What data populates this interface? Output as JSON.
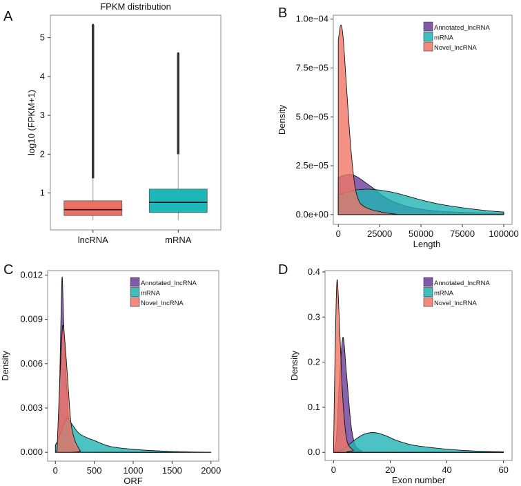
{
  "colors": {
    "Annotated_lncRNA": "#6a3d9a",
    "mRNA": "#1fb3b3",
    "Novel_lncRNA": "#f07567",
    "box_lncRNA": "#ee6f64",
    "box_mRNA": "#1eb8bb"
  },
  "chart_data": [
    {
      "panel": "A",
      "type": "box",
      "title": "FPKM distribution",
      "xlabel": "",
      "ylabel": "log10 (FPKM+1)",
      "categories": [
        "lncRNA",
        "mRNA"
      ],
      "ylim": [
        0.05,
        5.58
      ],
      "yticks": [
        1,
        2,
        3,
        4,
        5
      ],
      "grid": false,
      "boxes": [
        {
          "name": "lncRNA",
          "min": 0.3,
          "q1": 0.42,
          "median": 0.57,
          "q3": 0.8,
          "max": 1.38,
          "outliers_from": 1.38,
          "outliers_to": 5.33
        },
        {
          "name": "mRNA",
          "min": 0.3,
          "q1": 0.5,
          "median": 0.76,
          "q3": 1.1,
          "max": 2.0,
          "outliers_from": 2.0,
          "outliers_to": 4.6
        }
      ]
    },
    {
      "panel": "B",
      "type": "area",
      "xlabel": "Length",
      "ylabel": "Density",
      "xlim": [
        -3000,
        105000
      ],
      "ylim": [
        -5e-06,
        0.000102
      ],
      "xticks": [
        0,
        25000,
        50000,
        75000,
        100000
      ],
      "xtick_labels": [
        "0",
        "25000",
        "50000",
        "75000",
        "100000"
      ],
      "yticks": [
        0,
        2.5e-05,
        5e-05,
        7.5e-05,
        0.0001
      ],
      "ytick_labels": [
        "0.0e+00",
        "2.5e−05",
        "5.0e−05",
        "7.5e−05",
        "1.0e−04"
      ],
      "legend": "top-right",
      "grid": false,
      "series": [
        {
          "name": "Annotated_lncRNA",
          "points": [
            [
              0,
              1.9e-05
            ],
            [
              4000,
              2.02e-05
            ],
            [
              8000,
              2.05e-05
            ],
            [
              12000,
              1.9e-05
            ],
            [
              17000,
              1.6e-05
            ],
            [
              22000,
              1.3e-05
            ],
            [
              27000,
              9.5e-06
            ],
            [
              35000,
              6e-06
            ],
            [
              45000,
              3.5e-06
            ],
            [
              60000,
              1.8e-06
            ],
            [
              80000,
              1e-06
            ],
            [
              100000,
              6e-07
            ]
          ]
        },
        {
          "name": "mRNA",
          "points": [
            [
              0,
              1e-05
            ],
            [
              10000,
              1.25e-05
            ],
            [
              18000,
              1.3e-05
            ],
            [
              25000,
              1.25e-05
            ],
            [
              35000,
              1.1e-05
            ],
            [
              50000,
              7.5e-06
            ],
            [
              62000,
              5.2e-06
            ],
            [
              75000,
              3.5e-06
            ],
            [
              90000,
              2e-06
            ],
            [
              100000,
              1.3e-06
            ]
          ]
        },
        {
          "name": "Novel_lncRNA",
          "points": [
            [
              0,
              8.9e-05
            ],
            [
              1500,
              9.7e-05
            ],
            [
              3000,
              9e-05
            ],
            [
              5000,
              6.5e-05
            ],
            [
              7500,
              3.5e-05
            ],
            [
              10000,
              1.5e-05
            ],
            [
              12500,
              7e-06
            ],
            [
              15000,
              4.5e-06
            ],
            [
              20000,
              2.5e-06
            ],
            [
              25000,
              1.5e-06
            ],
            [
              30000,
              7e-07
            ],
            [
              35000,
              2e-07
            ],
            [
              40000,
              0
            ],
            [
              100000,
              0
            ]
          ]
        }
      ]
    },
    {
      "panel": "C",
      "type": "area",
      "xlabel": "ORF",
      "ylabel": "Density",
      "xlim": [
        -100,
        2100
      ],
      "ylim": [
        -0.0006,
        0.0123
      ],
      "xticks": [
        0,
        500,
        1000,
        1500,
        2000
      ],
      "xtick_labels": [
        "0",
        "500",
        "1000",
        "1500",
        "2000"
      ],
      "yticks": [
        0,
        0.003,
        0.006,
        0.009,
        0.012
      ],
      "ytick_labels": [
        "0.000",
        "0.003",
        "0.006",
        "0.009",
        "0.012"
      ],
      "legend": "top-right",
      "grid": false,
      "series": [
        {
          "name": "Annotated_lncRNA",
          "points": [
            [
              0,
              0
            ],
            [
              40,
              0.001
            ],
            [
              60,
              0.006
            ],
            [
              85,
              0.0118
            ],
            [
              105,
              0.009
            ],
            [
              130,
              0.006
            ],
            [
              160,
              0.003
            ],
            [
              200,
              0.001
            ],
            [
              250,
              0.0003
            ],
            [
              320,
              0.0001
            ],
            [
              400,
              0
            ],
            [
              2000,
              0
            ]
          ]
        },
        {
          "name": "mRNA",
          "points": [
            [
              0,
              0.0005
            ],
            [
              30,
              0.0008
            ],
            [
              100,
              0.0018
            ],
            [
              150,
              0.0023
            ],
            [
              200,
              0.002
            ],
            [
              300,
              0.0013
            ],
            [
              400,
              0.001
            ],
            [
              500,
              0.0008
            ],
            [
              700,
              0.0004
            ],
            [
              1000,
              0.0002
            ],
            [
              1500,
              5e-05
            ],
            [
              2000,
              0
            ]
          ]
        },
        {
          "name": "Novel_lncRNA",
          "points": [
            [
              20,
              0
            ],
            [
              50,
              0.004
            ],
            [
              80,
              0.0075
            ],
            [
              100,
              0.0086
            ],
            [
              130,
              0.007
            ],
            [
              170,
              0.004
            ],
            [
              200,
              0.002
            ],
            [
              250,
              0.0008
            ],
            [
              320,
              0.0001
            ],
            [
              350,
              0
            ],
            [
              2000,
              0
            ]
          ]
        }
      ]
    },
    {
      "panel": "D",
      "type": "area",
      "xlabel": "Exon number",
      "ylabel": "Density",
      "xlim": [
        -3,
        63
      ],
      "ylim": [
        -0.018,
        0.403
      ],
      "xticks": [
        0,
        20,
        40,
        60
      ],
      "xtick_labels": [
        "0",
        "20",
        "40",
        "60"
      ],
      "yticks": [
        0,
        0.1,
        0.2,
        0.3,
        0.4
      ],
      "ytick_labels": [
        "0.0",
        "0.1",
        "0.2",
        "0.3",
        "0.4"
      ],
      "legend": "top-right",
      "grid": false,
      "series": [
        {
          "name": "Annotated_lncRNA",
          "points": [
            [
              0,
              0
            ],
            [
              1,
              0.03
            ],
            [
              2,
              0.15
            ],
            [
              3.3,
              0.255
            ],
            [
              4.5,
              0.18
            ],
            [
              6,
              0.07
            ],
            [
              7,
              0.03
            ],
            [
              8,
              0.012
            ],
            [
              10,
              0.003
            ],
            [
              12,
              0
            ],
            [
              60,
              0
            ]
          ]
        },
        {
          "name": "mRNA",
          "points": [
            [
              0,
              0
            ],
            [
              3,
              0.005
            ],
            [
              6,
              0.02
            ],
            [
              10,
              0.038
            ],
            [
              14,
              0.044
            ],
            [
              18,
              0.038
            ],
            [
              22,
              0.027
            ],
            [
              26,
              0.019
            ],
            [
              30,
              0.014
            ],
            [
              40,
              0.007
            ],
            [
              50,
              0.003
            ],
            [
              60,
              0.001
            ]
          ]
        },
        {
          "name": "Novel_lncRNA",
          "points": [
            [
              0,
              0
            ],
            [
              0.5,
              0.2
            ],
            [
              1.2,
              0.38
            ],
            [
              2,
              0.3
            ],
            [
              3,
              0.15
            ],
            [
              4,
              0.06
            ],
            [
              5,
              0.02
            ],
            [
              7,
              0.005
            ],
            [
              9,
              0
            ],
            [
              60,
              0
            ]
          ]
        }
      ]
    }
  ],
  "legend_labels": [
    "Annotated_lncRNA",
    "mRNA",
    "Novel_lncRNA"
  ]
}
